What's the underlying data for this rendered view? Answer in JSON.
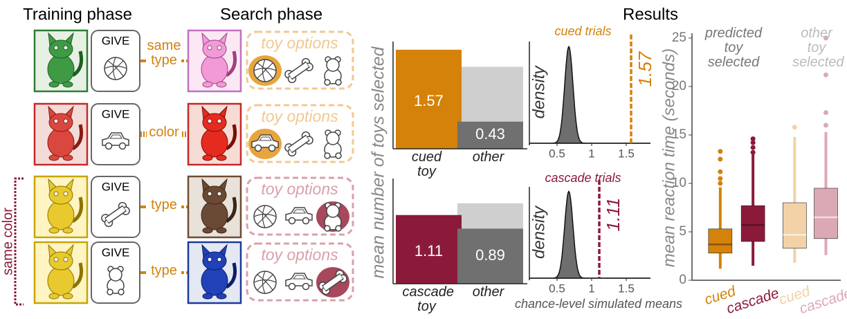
{
  "training_title": "Training phase",
  "search_title": "Search phase",
  "same_color": "same color",
  "rows": [
    {
      "give": "GIVE",
      "link": "same type",
      "options": "toy options"
    },
    {
      "give": "GIVE",
      "link": "color",
      "options": "toy options"
    },
    {
      "give": "GIVE",
      "link": "type",
      "options": "toy options"
    },
    {
      "give": "GIVE",
      "link": "type",
      "options": "toy options"
    }
  ],
  "chart_data": [
    {
      "type": "bar",
      "ylabel": "mean number of toys selected",
      "categories": [
        "cued toy",
        "other"
      ],
      "ylim": [
        0,
        1.7
      ],
      "series": [
        {
          "color": "#cfcfcf",
          "values": [
            0.7,
            1.3
          ]
        },
        {
          "colors": [
            "#d4820a",
            "#707070"
          ],
          "values": [
            1.57,
            0.43
          ]
        }
      ]
    },
    {
      "type": "bar",
      "categories": [
        "cascade toy",
        "other"
      ],
      "ylim": [
        0,
        1.7
      ],
      "series": [
        {
          "color": "#cfcfcf",
          "values": [
            0.7,
            1.3
          ]
        },
        {
          "colors": [
            "#8b1a3a",
            "#707070"
          ],
          "values": [
            1.11,
            0.89
          ]
        }
      ]
    },
    {
      "type": "density",
      "title": "cued trials",
      "color": "#d4820a",
      "ylabel": "density",
      "xlim": [
        0.1,
        1.85
      ],
      "xticks": [
        0.5,
        1,
        1.5
      ],
      "mean": 0.67,
      "sd": 0.06,
      "observed": 1.57
    },
    {
      "type": "density",
      "title": "cascade trials",
      "color": "#8b1a3a",
      "ylabel": "density",
      "xlabel": "chance-level simulated means",
      "xlim": [
        0.1,
        1.85
      ],
      "xticks": [
        0.5,
        1,
        1.5
      ],
      "mean": 0.67,
      "sd": 0.06,
      "observed": 1.11
    },
    {
      "type": "box",
      "title": "Results",
      "ylabel": "mean reaction time (seconds)",
      "ylim": [
        0,
        25.5
      ],
      "yticks": [
        0,
        5,
        10,
        15,
        20,
        25
      ],
      "categories": [
        "cued",
        "cascade",
        "cued",
        "cascade"
      ],
      "colors": [
        "#d4820a",
        "#8b1a3a",
        "#f2d2a6",
        "#dba9b6"
      ],
      "boxes": [
        {
          "min": 1.2,
          "q1": 2.8,
          "median": 3.7,
          "q3": 5.3,
          "max": 9.6,
          "outliers": [
            10,
            10.5,
            11.2,
            12.5,
            13.3
          ]
        },
        {
          "min": 1.5,
          "q1": 4,
          "median": 5.7,
          "q3": 7.7,
          "max": 13,
          "outliers": [
            13.2,
            13.7,
            14.2,
            14.6
          ]
        },
        {
          "min": 1.8,
          "q1": 3.3,
          "median": 4.7,
          "q3": 8,
          "max": 14.8,
          "outliers": [
            15.8
          ]
        },
        {
          "min": 2.6,
          "q1": 4.3,
          "median": 6.5,
          "q3": 9.5,
          "max": 15.3,
          "outliers": [
            16,
            17.3,
            21.2,
            25
          ]
        }
      ],
      "annotations": [
        {
          "text": "predicted toy selected",
          "color": "#777777"
        },
        {
          "text": "other toy selected",
          "color": "#bbbbbb"
        }
      ]
    }
  ]
}
